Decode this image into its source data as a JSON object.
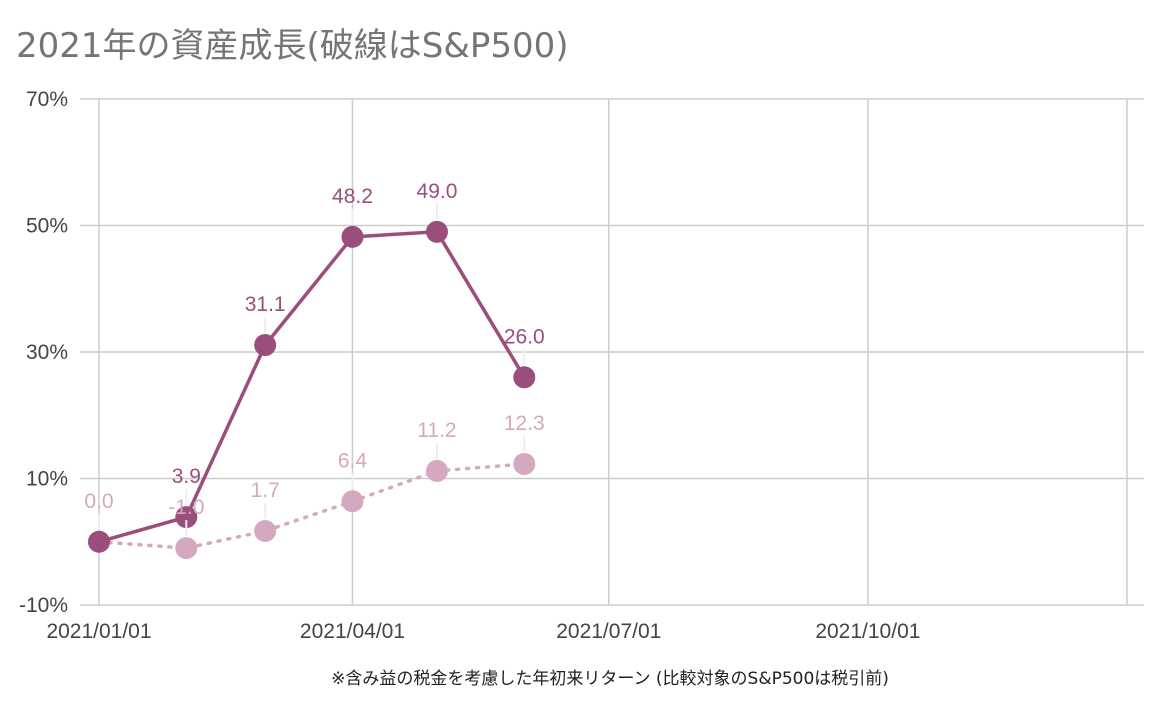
{
  "chart_data": {
    "type": "line",
    "title": "2021年の資産成長(破線はS&P500)",
    "xlabel": "※含み益の税金を考慮した年初来リターン (比較対象のS&P500は税引前)",
    "ylabel": "",
    "x_ticks": [
      "2021/01/01",
      "2021/04/01",
      "2021/07/01",
      "2021/10/01"
    ],
    "y_ticks": [
      "70%",
      "50%",
      "30%",
      "10%",
      "-10%"
    ],
    "xlim": [
      "2021/01/01",
      "2022/01/01"
    ],
    "ylim": [
      -10,
      70
    ],
    "grid": true,
    "x": [
      "2021/01/01",
      "2021/02/01",
      "2021/03/01",
      "2021/04/01",
      "2021/05/01",
      "2021/06/01"
    ],
    "series": [
      {
        "values": [
          0.0,
          3.9,
          31.1,
          48.2,
          49.0,
          26.0
        ],
        "labels": [
          "",
          "3.9",
          "31.1",
          "48.2",
          "49.0",
          "26.0"
        ],
        "color": "#9a4e7c",
        "style": "solid"
      },
      {
        "values": [
          0.0,
          -1.0,
          1.7,
          6.4,
          11.2,
          12.3
        ],
        "labels": [
          "0.0",
          "-1.0",
          "1.7",
          "6.4",
          "11.2",
          "12.3"
        ],
        "color": "#d4a9c0",
        "style": "dotted"
      }
    ]
  }
}
